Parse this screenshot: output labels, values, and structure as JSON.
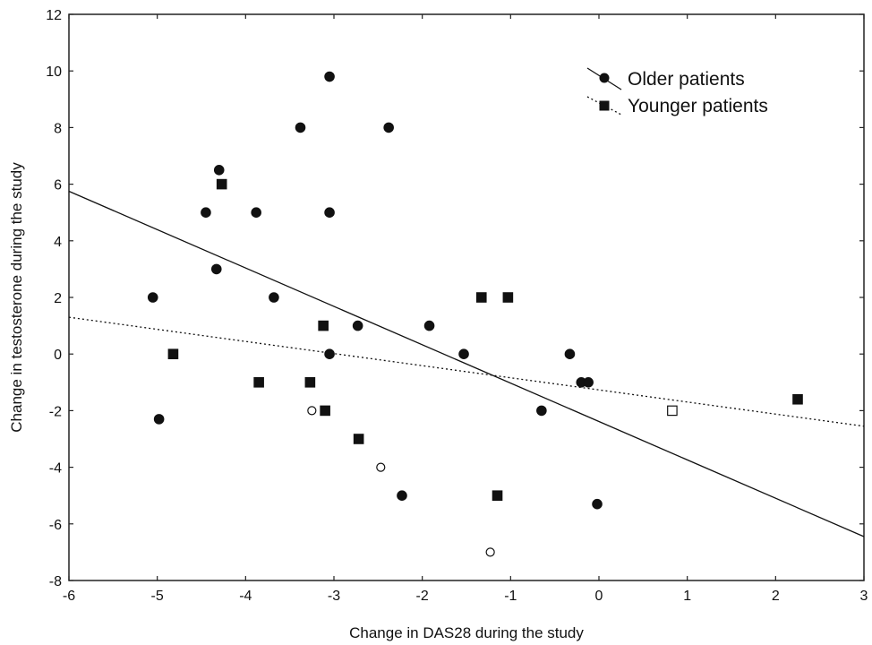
{
  "chart_data": {
    "type": "scatter",
    "title": "",
    "xlabel": "Change in DAS28 during the study",
    "ylabel": "Change in testosterone during the study",
    "xlim": [
      -6,
      3
    ],
    "ylim": [
      -8,
      12
    ],
    "xticks": [
      -6,
      -5,
      -4,
      -3,
      -2,
      -1,
      0,
      1,
      2,
      3
    ],
    "yticks": [
      -8,
      -6,
      -4,
      -2,
      0,
      2,
      4,
      6,
      8,
      10,
      12
    ],
    "grid": false,
    "legend_position": "top-right",
    "colors": {
      "marker": "#111111",
      "axis": "#222222",
      "background": "#ffffff"
    },
    "series": [
      {
        "name": "Older patients",
        "marker": "circle",
        "line_style": "solid",
        "trendline": {
          "x": [
            -6,
            3
          ],
          "y": [
            5.75,
            -6.45
          ]
        },
        "points": [
          {
            "x": -3.05,
            "y": 9.8
          },
          {
            "x": -3.38,
            "y": 8.0
          },
          {
            "x": -2.38,
            "y": 8.0
          },
          {
            "x": -4.3,
            "y": 6.5
          },
          {
            "x": -4.45,
            "y": 5.0
          },
          {
            "x": -3.88,
            "y": 5.0
          },
          {
            "x": -3.05,
            "y": 5.0
          },
          {
            "x": -4.33,
            "y": 3.0
          },
          {
            "x": -3.68,
            "y": 2.0
          },
          {
            "x": -5.05,
            "y": 2.0
          },
          {
            "x": -2.73,
            "y": 1.0
          },
          {
            "x": -1.92,
            "y": 1.0
          },
          {
            "x": -3.05,
            "y": 0.0
          },
          {
            "x": -1.53,
            "y": 0.0
          },
          {
            "x": -0.33,
            "y": 0.0
          },
          {
            "x": -0.2,
            "y": -1.0
          },
          {
            "x": -0.12,
            "y": -1.0
          },
          {
            "x": -0.65,
            "y": -2.0
          },
          {
            "x": -4.98,
            "y": -2.3
          },
          {
            "x": -2.23,
            "y": -5.0
          },
          {
            "x": -0.02,
            "y": -5.3
          },
          {
            "x": -3.25,
            "y": -2.0,
            "hollow": true
          },
          {
            "x": -2.47,
            "y": -4.0,
            "hollow": true
          },
          {
            "x": -1.23,
            "y": -7.0,
            "hollow": true
          }
        ]
      },
      {
        "name": "Younger patients",
        "marker": "square",
        "line_style": "dotted",
        "trendline": {
          "x": [
            -6,
            3
          ],
          "y": [
            1.3,
            -2.55
          ]
        },
        "points": [
          {
            "x": -4.27,
            "y": 6.0
          },
          {
            "x": -1.33,
            "y": 2.0
          },
          {
            "x": -1.03,
            "y": 2.0
          },
          {
            "x": -3.12,
            "y": 1.0
          },
          {
            "x": -4.82,
            "y": 0.0
          },
          {
            "x": -3.85,
            "y": -1.0
          },
          {
            "x": -3.27,
            "y": -1.0
          },
          {
            "x": -3.1,
            "y": -2.0
          },
          {
            "x": -2.72,
            "y": -3.0
          },
          {
            "x": -1.15,
            "y": -5.0
          },
          {
            "x": 2.25,
            "y": -1.6
          },
          {
            "x": 0.83,
            "y": -2.0,
            "hollow": true
          }
        ]
      }
    ]
  }
}
